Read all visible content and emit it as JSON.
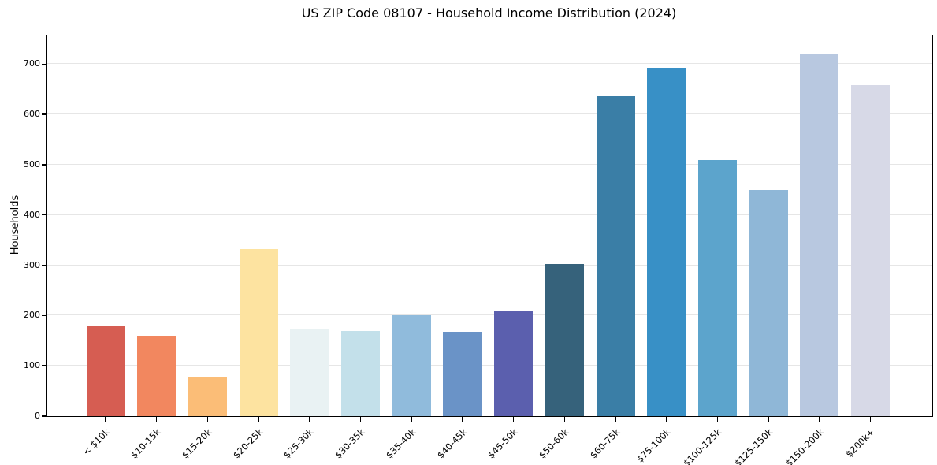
{
  "chart_data": {
    "type": "bar",
    "title": "US ZIP Code 08107 - Household Income Distribution (2024)",
    "xlabel": "",
    "ylabel": "Households",
    "categories": [
      "< $10k",
      "$10-15k",
      "$15-20k",
      "$20-25k",
      "$25-30k",
      "$30-35k",
      "$35-40k",
      "$40-45k",
      "$45-50k",
      "$50-60k",
      "$60-75k",
      "$75-100k",
      "$100-125k",
      "$125-150k",
      "$150-200k",
      "$200k+"
    ],
    "values": [
      181,
      160,
      78,
      333,
      172,
      170,
      200,
      168,
      209,
      303,
      636,
      692,
      510,
      450,
      719,
      659
    ],
    "bar_colors": [
      "#d65d52",
      "#f2875f",
      "#fbbd77",
      "#fde3a0",
      "#e9f2f3",
      "#c3e0ea",
      "#90bbdc",
      "#6a93c7",
      "#5b5fae",
      "#36627b",
      "#3a7ea6",
      "#3890c6",
      "#5ca4cc",
      "#8fb7d7",
      "#b8c8e0",
      "#d7d9e7"
    ],
    "yticks": [
      0,
      100,
      200,
      300,
      400,
      500,
      600,
      700
    ],
    "ylim": [
      0,
      757
    ],
    "grid": "horizontal",
    "legend": "none",
    "background": "#ffffff",
    "spine_color": "#000000",
    "gridline_color": "#e6e6e6"
  }
}
